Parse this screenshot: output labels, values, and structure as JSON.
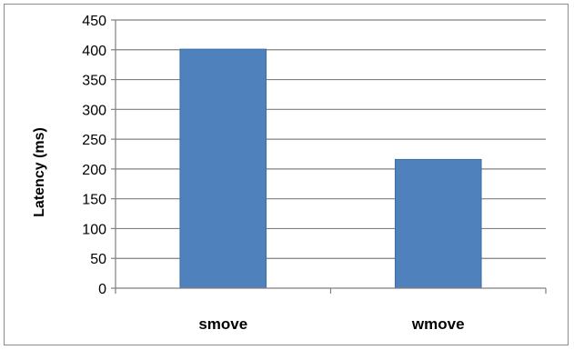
{
  "chart_data": {
    "type": "bar",
    "categories": [
      "smove",
      "wmove"
    ],
    "values": [
      401,
      216
    ],
    "title": "",
    "xlabel": "",
    "ylabel": "Latency (ms)",
    "ylim": [
      0,
      450
    ],
    "yticks": [
      0,
      50,
      100,
      150,
      200,
      250,
      300,
      350,
      400,
      450
    ],
    "grid": true,
    "legend": "none",
    "colors": {
      "bar": "#4f81bd",
      "bar_edge": "#3a6ea5",
      "grid": "#808080",
      "axis": "#7f7f7f"
    }
  }
}
